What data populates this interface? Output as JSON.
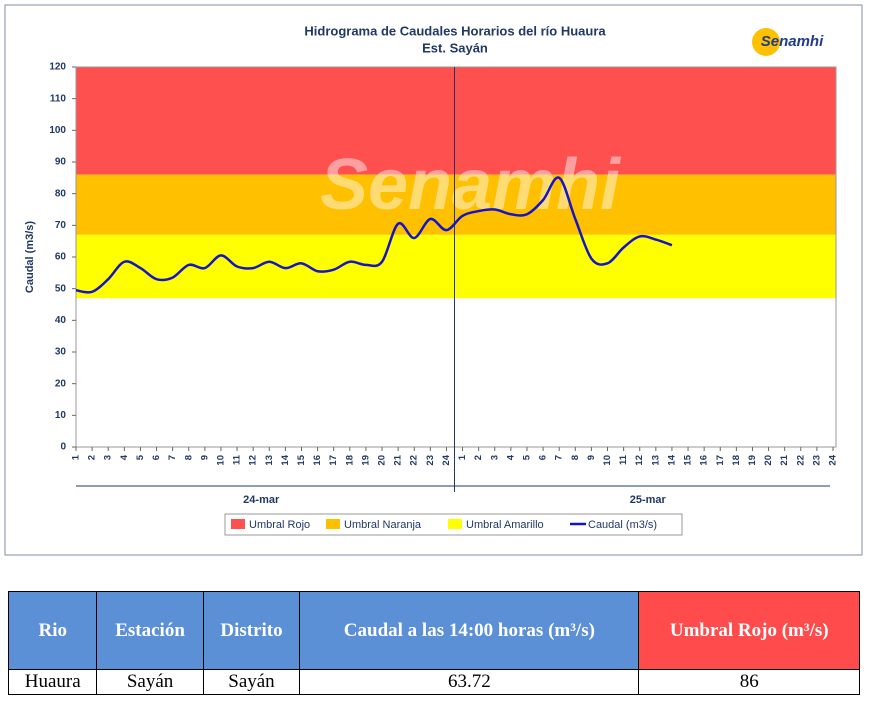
{
  "chart_data": {
    "type": "line",
    "title": "Hidrograma de Caudales Horarios del río Huaura",
    "subtitle": "Est. Sayán",
    "logo": "Senamhi",
    "watermark": "Senamhi",
    "y_label": "Caudal  (m3/s)",
    "categories": [
      "1",
      "2",
      "3",
      "4",
      "5",
      "6",
      "7",
      "8",
      "9",
      "10",
      "11",
      "12",
      "13",
      "14",
      "15",
      "16",
      "17",
      "18",
      "19",
      "20",
      "21",
      "22",
      "23",
      "24",
      "1",
      "2",
      "3",
      "4",
      "5",
      "6",
      "7",
      "8",
      "9",
      "10",
      "11",
      "12",
      "13",
      "14",
      "15",
      "16",
      "17",
      "18",
      "19",
      "20",
      "21",
      "22",
      "23",
      "24"
    ],
    "category_groups": [
      "24-mar",
      "25-mar"
    ],
    "thresholds": [
      {
        "name": "Umbral Rojo",
        "color": "#ff5050",
        "value": 86
      },
      {
        "name": "Umbral Naranja",
        "color": "#ffc000",
        "value": 67
      },
      {
        "name": "Umbral Amarillo",
        "color": "#ffff00",
        "value": 47
      }
    ],
    "series": [
      {
        "name": "Caudal (m3/s)",
        "color": "#1414c8",
        "values": [
          49.5,
          49,
          53,
          58.5,
          56.5,
          53,
          53.5,
          57.5,
          56.5,
          60.5,
          57,
          56.5,
          58.5,
          56.5,
          58,
          55.5,
          56,
          58.5,
          57.5,
          58.5,
          70.5,
          66,
          72,
          68.5,
          73,
          74.5,
          75,
          73.5,
          73.5,
          78,
          85,
          72,
          59.5,
          58,
          63,
          66.5,
          65.5,
          63.72,
          null,
          null,
          null,
          null,
          null,
          null,
          null,
          null,
          null,
          null
        ]
      }
    ],
    "ylim": [
      0,
      120
    ],
    "yticks": [
      0,
      10,
      20,
      30,
      40,
      50,
      60,
      70,
      80,
      90,
      100,
      110,
      120
    ]
  },
  "table": {
    "headers": [
      "Rio",
      "Estación",
      "Distrito",
      "Caudal a las 14:00 horas (m³/s)",
      "Umbral Rojo (m³/s)"
    ],
    "rows": [
      [
        "Huaura",
        "Sayán",
        "Sayán",
        "63.72",
        "86"
      ]
    ]
  }
}
